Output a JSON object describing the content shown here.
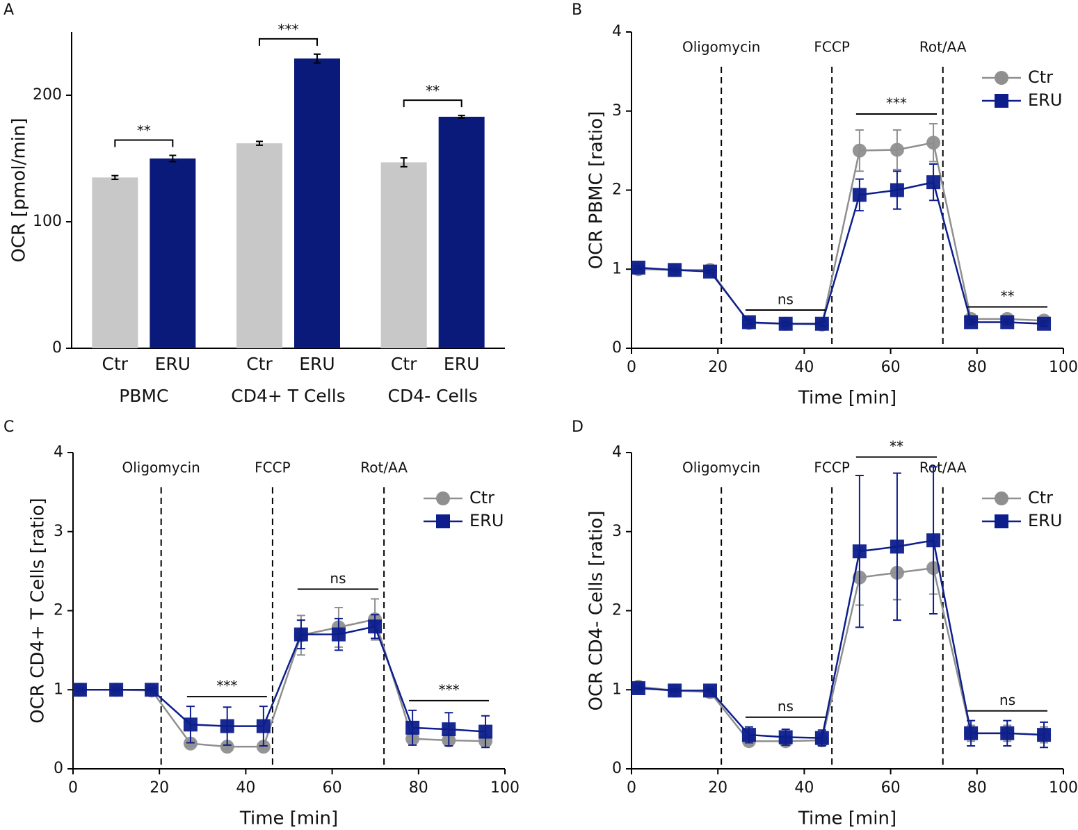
{
  "chart_data": [
    {
      "type": "bar",
      "panel": "A",
      "ylabel": "OCR [pmol/min]",
      "categories": [
        "PBMC",
        "CD4+ T Cells",
        "CD4- Cells"
      ],
      "ylim": [
        0,
        250
      ],
      "yticks": [
        0,
        100,
        200
      ],
      "series": [
        {
          "name": "Ctr",
          "color": "#c8c8c8",
          "values": [
            135,
            162,
            147
          ],
          "errors": [
            1.5,
            1.5,
            3.5
          ]
        },
        {
          "name": "ERU",
          "color": "#0a1a7a",
          "values": [
            150,
            229,
            183
          ],
          "errors": [
            2.5,
            3.5,
            1
          ]
        }
      ],
      "annotations": [
        "**",
        "***",
        "**"
      ]
    },
    {
      "type": "line",
      "panel": "B",
      "ylabel": "OCR PBMC [ratio]",
      "xlabel": "Time [min]",
      "x": [
        1.6,
        10,
        18.2,
        27.2,
        35.7,
        44.1,
        52.8,
        61.5,
        69.9,
        78.6,
        87,
        95.5
      ],
      "xlim": [
        0,
        100
      ],
      "xticks": [
        0,
        20,
        40,
        60,
        80,
        100
      ],
      "ylim": [
        0,
        4
      ],
      "yticks": [
        0,
        1,
        2,
        3,
        4
      ],
      "legend": "upper right",
      "injections": [
        {
          "label": "Oligomycin",
          "x": 20.8
        },
        {
          "label": "FCCP",
          "x": 46.4
        },
        {
          "label": "Rot/AA",
          "x": 72.1
        }
      ],
      "series": [
        {
          "name": "Ctr",
          "color": "#8f8f8f",
          "marker": "circle",
          "values": [
            1.0,
            0.99,
            0.99,
            0.32,
            0.31,
            0.3,
            2.5,
            2.51,
            2.6,
            0.37,
            0.37,
            0.35
          ],
          "errors": [
            0.03,
            0.02,
            0.02,
            0.03,
            0.03,
            0.03,
            0.26,
            0.25,
            0.24,
            0.03,
            0.03,
            0.03
          ]
        },
        {
          "name": "ERU",
          "color": "#0d1e8c",
          "marker": "square",
          "values": [
            1.02,
            0.99,
            0.97,
            0.33,
            0.31,
            0.31,
            1.94,
            2.0,
            2.1,
            0.33,
            0.33,
            0.31
          ],
          "errors": [
            0.02,
            0.02,
            0.02,
            0.03,
            0.03,
            0.03,
            0.2,
            0.24,
            0.23,
            0.03,
            0.03,
            0.03
          ]
        }
      ],
      "annotations": [
        "ns",
        "***",
        "**"
      ]
    },
    {
      "type": "line",
      "panel": "C",
      "ylabel": "OCR CD4+ T Cells [ratio]",
      "xlabel": "Time [min]",
      "x": [
        1.6,
        10,
        18.2,
        27.2,
        35.7,
        44.1,
        52.8,
        61.5,
        69.9,
        78.6,
        87,
        95.5
      ],
      "xlim": [
        0,
        100
      ],
      "xticks": [
        0,
        20,
        40,
        60,
        80,
        100
      ],
      "ylim": [
        0,
        4
      ],
      "yticks": [
        0,
        1,
        2,
        3,
        4
      ],
      "legend": "upper right",
      "injections": [
        {
          "label": "Oligomycin",
          "x": 20.4
        },
        {
          "label": "FCCP",
          "x": 46.2
        },
        {
          "label": "Rot/AA",
          "x": 72
        }
      ],
      "series": [
        {
          "name": "Ctr",
          "color": "#8f8f8f",
          "marker": "circle",
          "values": [
            1.0,
            1.0,
            0.99,
            0.32,
            0.28,
            0.28,
            1.69,
            1.79,
            1.89,
            0.38,
            0.36,
            0.35
          ],
          "errors": [
            0.02,
            0.02,
            0.02,
            0.03,
            0.03,
            0.03,
            0.25,
            0.25,
            0.26,
            0.03,
            0.03,
            0.03
          ]
        },
        {
          "name": "ERU",
          "color": "#0d1e8c",
          "marker": "square",
          "values": [
            1.0,
            1.0,
            1.0,
            0.56,
            0.54,
            0.54,
            1.7,
            1.7,
            1.8,
            0.52,
            0.5,
            0.47
          ],
          "errors": [
            0.02,
            0.02,
            0.02,
            0.23,
            0.24,
            0.25,
            0.18,
            0.2,
            0.15,
            0.22,
            0.21,
            0.2
          ]
        }
      ],
      "annotations": [
        "***",
        "ns",
        "***"
      ]
    },
    {
      "type": "line",
      "panel": "D",
      "ylabel": "OCR CD4- Cells [ratio]",
      "xlabel": "Time [min]",
      "x": [
        1.6,
        10,
        18.2,
        27.2,
        35.7,
        44.1,
        52.8,
        61.5,
        69.9,
        78.6,
        87,
        95.5
      ],
      "xlim": [
        0,
        100
      ],
      "xticks": [
        0,
        20,
        40,
        60,
        80,
        100
      ],
      "ylim": [
        0,
        4
      ],
      "yticks": [
        0,
        1,
        2,
        3,
        4
      ],
      "legend": "upper right",
      "injections": [
        {
          "label": "Oligomycin",
          "x": 20.8
        },
        {
          "label": "FCCP",
          "x": 46.4
        },
        {
          "label": "Rot/AA",
          "x": 72.1
        }
      ],
      "series": [
        {
          "name": "Ctr",
          "color": "#8f8f8f",
          "marker": "circle",
          "values": [
            1.04,
            0.99,
            0.97,
            0.35,
            0.35,
            0.36,
            2.42,
            2.48,
            2.54,
            0.45,
            0.45,
            0.43
          ],
          "errors": [
            0.03,
            0.02,
            0.02,
            0.05,
            0.05,
            0.05,
            0.35,
            0.34,
            0.33,
            0.1,
            0.1,
            0.1
          ]
        },
        {
          "name": "ERU",
          "color": "#0d1e8c",
          "marker": "square",
          "values": [
            1.02,
            0.99,
            0.99,
            0.43,
            0.4,
            0.39,
            2.75,
            2.81,
            2.89,
            0.45,
            0.45,
            0.43
          ],
          "errors": [
            0.02,
            0.02,
            0.02,
            0.1,
            0.1,
            0.1,
            0.96,
            0.93,
            0.93,
            0.16,
            0.16,
            0.16
          ]
        }
      ],
      "annotations": [
        "ns",
        "**",
        "ns"
      ]
    }
  ]
}
